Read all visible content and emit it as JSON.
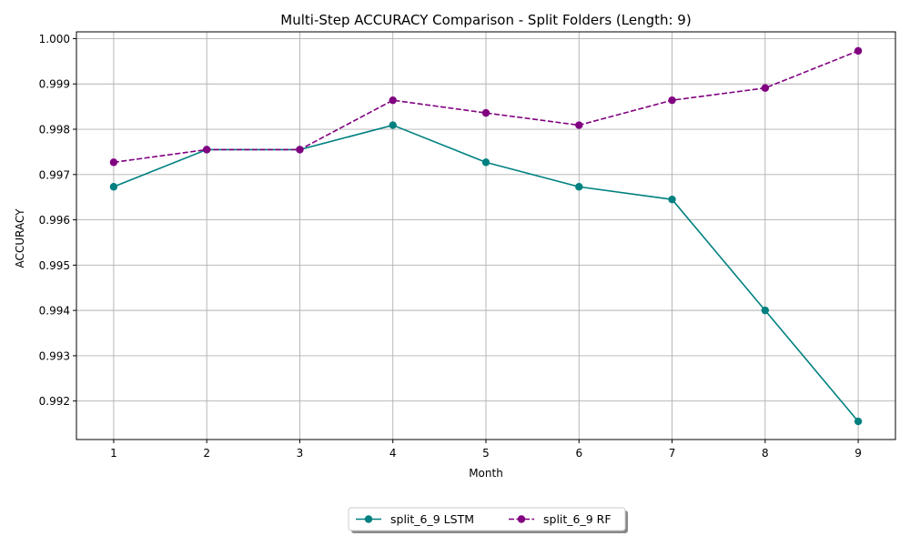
{
  "chart_data": {
    "type": "line",
    "title": "Multi-Step ACCURACY Comparison - Split Folders (Length: 9)",
    "xlabel": "Month",
    "ylabel": "ACCURACY",
    "x": [
      1,
      2,
      3,
      4,
      5,
      6,
      7,
      8,
      9
    ],
    "xticks": [
      "1",
      "2",
      "3",
      "4",
      "5",
      "6",
      "7",
      "8",
      "9"
    ],
    "yticks": [
      "0.992",
      "0.993",
      "0.994",
      "0.995",
      "0.996",
      "0.997",
      "0.998",
      "0.999",
      "1.000"
    ],
    "ylim": [
      0.99115,
      1.00015
    ],
    "xlim": [
      0.6,
      9.4
    ],
    "grid": true,
    "legend_position": "bottom-center",
    "series": [
      {
        "name": "split_6_9 LSTM",
        "color": "#008080",
        "line_style": "solid",
        "marker": "circle",
        "values": [
          0.99673,
          0.99755,
          0.99755,
          0.99809,
          0.99727,
          0.99673,
          0.99645,
          0.994,
          0.99155
        ]
      },
      {
        "name": "split_6_9 RF",
        "color": "#800080",
        "line_style": "dashed",
        "marker": "circle",
        "values": [
          0.99727,
          0.99755,
          0.99755,
          0.99864,
          0.99836,
          0.99809,
          0.99864,
          0.99891,
          0.99973
        ]
      }
    ]
  }
}
